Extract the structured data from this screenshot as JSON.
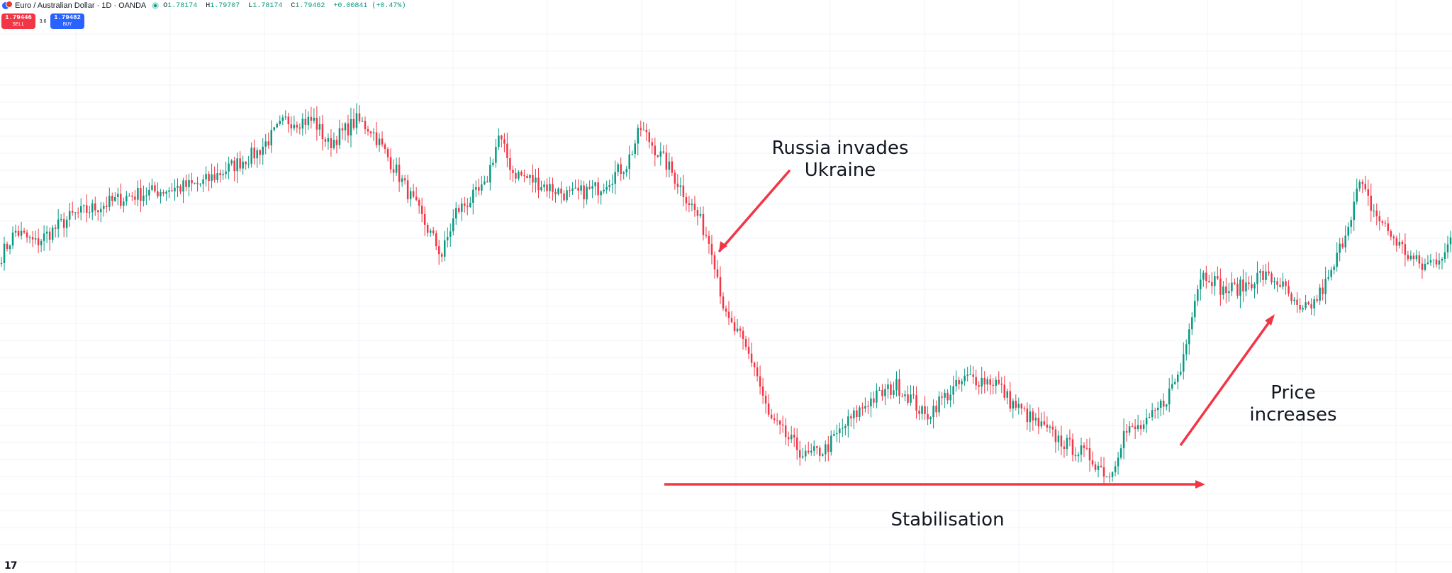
{
  "header": {
    "symbol": "Euro / Australian Dollar · 1D · OANDA",
    "open_label": "O",
    "open": "1.78174",
    "high_label": "H",
    "high": "1.79707",
    "low_label": "L",
    "low": "1.78174",
    "close_label": "C",
    "close": "1.79462",
    "change": "+0.00841 (+0.47%)"
  },
  "trade": {
    "sell_price": "1.79446",
    "sell_label": "SELL",
    "spread": "3.6",
    "buy_price": "1.79482",
    "buy_label": "BUY"
  },
  "annotations": {
    "invasion_line1": "Russia invades",
    "invasion_line2": "Ukraine",
    "stabilisation": "Stabilisation",
    "increase_line1": "Price",
    "increase_line2": "increases"
  },
  "colors": {
    "up": "#089981",
    "down": "#f23645",
    "annotation": "#f23645",
    "grid": "#f0f3fa"
  },
  "chart_data": {
    "type": "candlestick",
    "anchors": [
      [
        0,
        1.525
      ],
      [
        5,
        1.555
      ],
      [
        12,
        1.54
      ],
      [
        25,
        1.575
      ],
      [
        45,
        1.6
      ],
      [
        70,
        1.615
      ],
      [
        90,
        1.655
      ],
      [
        100,
        1.695
      ],
      [
        110,
        1.695
      ],
      [
        115,
        1.665
      ],
      [
        125,
        1.695
      ],
      [
        130,
        1.685
      ],
      [
        140,
        1.625
      ],
      [
        155,
        1.525
      ],
      [
        160,
        1.58
      ],
      [
        170,
        1.61
      ],
      [
        175,
        1.675
      ],
      [
        180,
        1.63
      ],
      [
        190,
        1.615
      ],
      [
        200,
        1.6
      ],
      [
        210,
        1.61
      ],
      [
        220,
        1.64
      ],
      [
        225,
        1.685
      ],
      [
        235,
        1.635
      ],
      [
        245,
        1.575
      ],
      [
        250,
        1.535
      ],
      [
        255,
        1.445
      ],
      [
        260,
        1.42
      ],
      [
        265,
        1.385
      ],
      [
        270,
        1.32
      ],
      [
        275,
        1.3
      ],
      [
        283,
        1.27
      ],
      [
        290,
        1.28
      ],
      [
        297,
        1.31
      ],
      [
        305,
        1.34
      ],
      [
        315,
        1.36
      ],
      [
        320,
        1.345
      ],
      [
        325,
        1.32
      ],
      [
        330,
        1.34
      ],
      [
        340,
        1.37
      ],
      [
        350,
        1.365
      ],
      [
        355,
        1.34
      ],
      [
        365,
        1.31
      ],
      [
        375,
        1.285
      ],
      [
        383,
        1.27
      ],
      [
        390,
        1.245
      ],
      [
        395,
        1.3
      ],
      [
        403,
        1.31
      ],
      [
        410,
        1.345
      ],
      [
        415,
        1.38
      ],
      [
        418,
        1.44
      ],
      [
        422,
        1.5
      ],
      [
        425,
        1.5
      ],
      [
        430,
        1.48
      ],
      [
        437,
        1.485
      ],
      [
        443,
        1.5
      ],
      [
        450,
        1.49
      ],
      [
        457,
        1.45
      ],
      [
        462,
        1.465
      ],
      [
        468,
        1.5
      ],
      [
        473,
        1.555
      ],
      [
        478,
        1.615
      ],
      [
        483,
        1.58
      ],
      [
        488,
        1.555
      ],
      [
        495,
        1.525
      ],
      [
        500,
        1.51
      ],
      [
        505,
        1.52
      ],
      [
        510,
        1.54
      ]
    ]
  }
}
